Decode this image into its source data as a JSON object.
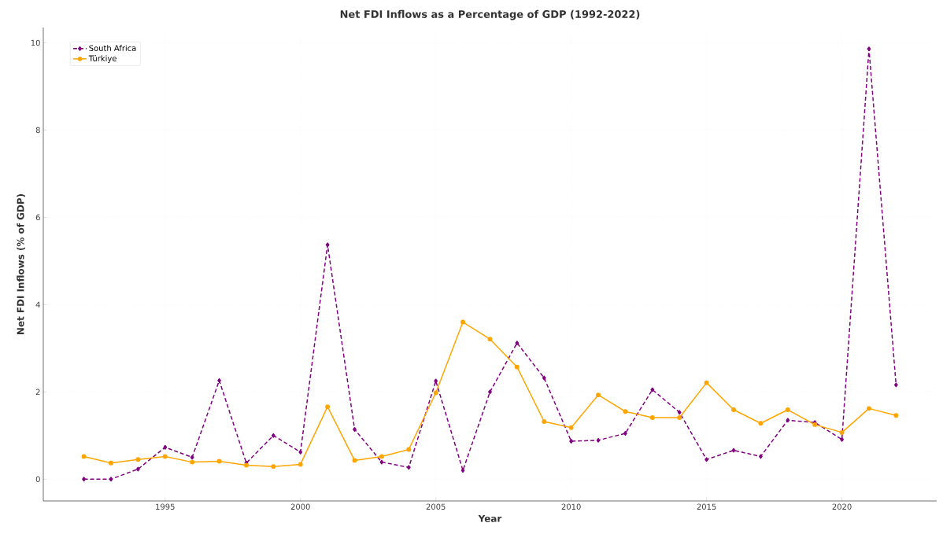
{
  "chart_data": {
    "type": "line",
    "title": "Net FDI Inflows as a Percentage of GDP (1992-2022)",
    "xlabel": "Year",
    "ylabel": "Net FDI Inflows (% of GDP)",
    "x": [
      1992,
      1993,
      1994,
      1995,
      1996,
      1997,
      1998,
      1999,
      2000,
      2001,
      2002,
      2003,
      2004,
      2005,
      2006,
      2007,
      2008,
      2009,
      2010,
      2011,
      2012,
      2013,
      2014,
      2015,
      2016,
      2017,
      2018,
      2019,
      2020,
      2021,
      2022
    ],
    "series": [
      {
        "name": "South Africa",
        "color": "#800080",
        "marker": "diamond",
        "line_style": "dashed",
        "values": [
          0.0,
          0.0,
          0.23,
          0.73,
          0.5,
          2.26,
          0.37,
          1.0,
          0.62,
          5.37,
          1.14,
          0.39,
          0.27,
          2.25,
          0.2,
          2.0,
          3.12,
          2.32,
          0.87,
          0.89,
          1.05,
          2.05,
          1.53,
          0.45,
          0.66,
          0.52,
          1.35,
          1.3,
          0.91,
          9.86,
          2.16
        ]
      },
      {
        "name": "Türkiye",
        "color": "#ffa500",
        "marker": "circle",
        "line_style": "solid",
        "values": [
          0.52,
          0.37,
          0.45,
          0.52,
          0.39,
          0.41,
          0.32,
          0.29,
          0.34,
          1.66,
          0.43,
          0.52,
          0.68,
          1.98,
          3.6,
          3.21,
          2.57,
          1.32,
          1.18,
          1.93,
          1.55,
          1.41,
          1.41,
          2.21,
          1.59,
          1.28,
          1.59,
          1.25,
          1.07,
          1.62,
          1.46
        ]
      }
    ],
    "xlim": [
      1990.5,
      2023.5
    ],
    "ylim": [
      -0.5,
      10.35
    ],
    "xticks": [
      1995,
      2000,
      2005,
      2010,
      2015,
      2020
    ],
    "yticks": [
      0,
      2,
      4,
      6,
      8,
      10
    ],
    "grid": true,
    "legend": "top left"
  }
}
